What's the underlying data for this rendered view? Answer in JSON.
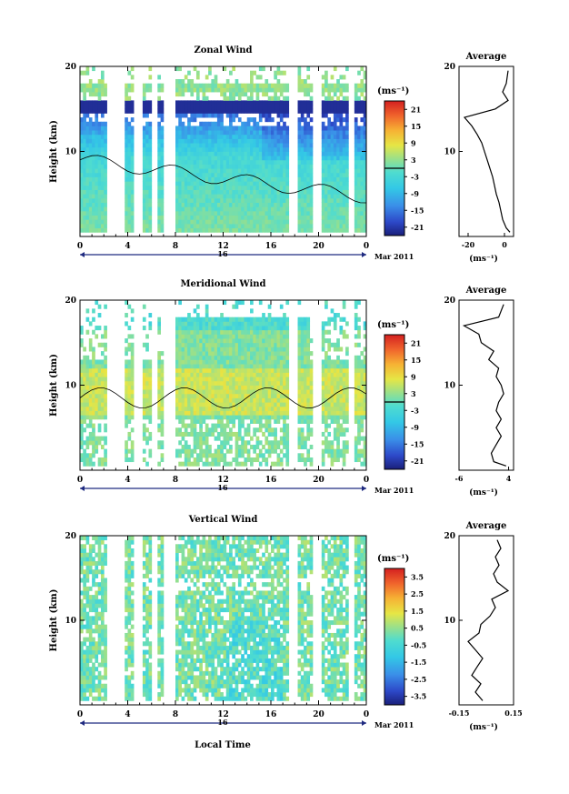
{
  "figure": {
    "xlabel": "Local Time",
    "date_label": "Mar 2011",
    "day_label": "16"
  },
  "chart_data": [
    {
      "type": "heatmap",
      "title": "Zonal Wind",
      "ylabel": "Height (km)",
      "xticks": [
        "0",
        "4",
        "8",
        "12",
        "16",
        "20",
        "0"
      ],
      "xlim": [
        0,
        24
      ],
      "ylim": [
        0,
        20
      ],
      "yticks": [
        "10",
        "20"
      ],
      "colorbar": {
        "unit": "(ms⁻¹)",
        "ticks": [
          "21",
          "15",
          "9",
          "3",
          "-3",
          "-9",
          "-15",
          "-21"
        ],
        "range": [
          -24,
          24
        ]
      },
      "zero_contour_level": 0,
      "profile": {
        "title": "Average",
        "xlabel": "(ms⁻¹)",
        "xlim": [
          -25,
          5
        ],
        "xticks": [
          "-20",
          "0"
        ],
        "yticks": [
          "10",
          "20"
        ],
        "z": [
          0.5,
          1,
          2,
          3,
          4,
          5,
          6,
          7,
          8,
          9,
          10,
          11,
          12,
          13,
          14,
          15,
          16,
          17,
          18,
          19.5
        ],
        "values": [
          3,
          1,
          -1,
          -2,
          -3,
          -4.5,
          -5.5,
          -6.5,
          -8,
          -9.5,
          -11,
          -12.5,
          -15,
          -18,
          -22,
          -5,
          2,
          -1,
          1,
          2
        ]
      }
    },
    {
      "type": "heatmap",
      "title": "Meridional Wind",
      "ylabel": "Height (km)",
      "xticks": [
        "0",
        "4",
        "8",
        "12",
        "16",
        "20",
        "0"
      ],
      "xlim": [
        0,
        24
      ],
      "ylim": [
        0,
        20
      ],
      "yticks": [
        "10",
        "20"
      ],
      "colorbar": {
        "unit": "(ms⁻¹)",
        "ticks": [
          "21",
          "15",
          "9",
          "3",
          "-3",
          "-9",
          "-15",
          "-21"
        ],
        "range": [
          -24,
          24
        ]
      },
      "zero_contour_level": 0,
      "profile": {
        "title": "Average",
        "xlabel": "(ms⁻¹)",
        "xlim": [
          -6,
          5
        ],
        "xticks": [
          "-6",
          "4"
        ],
        "yticks": [
          "10",
          "20"
        ],
        "z": [
          0.5,
          1,
          2,
          3,
          4,
          5,
          6,
          7,
          8,
          9,
          10,
          11,
          12,
          13,
          14,
          15,
          16,
          17,
          18,
          19.5
        ],
        "values": [
          3.5,
          1,
          0.5,
          1.5,
          2.5,
          1.5,
          2.5,
          1.5,
          2,
          3,
          2.5,
          1.5,
          2,
          0,
          1,
          -1.5,
          -2,
          -5,
          2,
          3
        ]
      }
    },
    {
      "type": "heatmap",
      "title": "Vertical Wind",
      "ylabel": "Height (km)",
      "xticks": [
        "0",
        "4",
        "8",
        "12",
        "16",
        "20",
        "0"
      ],
      "xlim": [
        0,
        24
      ],
      "ylim": [
        0,
        20
      ],
      "yticks": [
        "10",
        "20"
      ],
      "colorbar": {
        "unit": "(ms⁻¹)",
        "ticks": [
          "3.5",
          "2.5",
          "1.5",
          "0.5",
          "-0.5",
          "-1.5",
          "-2.5",
          "-3.5"
        ],
        "range": [
          -4,
          4
        ]
      },
      "profile": {
        "title": "Average",
        "xlabel": "(ms⁻¹)",
        "xlim": [
          -0.15,
          0.15
        ],
        "xticks": [
          "-0.15",
          "0.15"
        ],
        "yticks": [
          "10",
          "20"
        ],
        "z": [
          0.5,
          1.5,
          2.5,
          3.5,
          4.5,
          5.5,
          6.5,
          7.5,
          8.5,
          9.5,
          10.5,
          11.5,
          12.5,
          13.5,
          14.5,
          15.5,
          16.5,
          17.5,
          18.5,
          19.5
        ],
        "values": [
          -0.02,
          -0.06,
          -0.03,
          -0.08,
          -0.05,
          -0.02,
          -0.06,
          -0.1,
          -0.04,
          -0.03,
          0.02,
          0.05,
          0.03,
          0.12,
          0.06,
          0.04,
          0.07,
          0.05,
          0.08,
          0.06
        ]
      }
    }
  ]
}
